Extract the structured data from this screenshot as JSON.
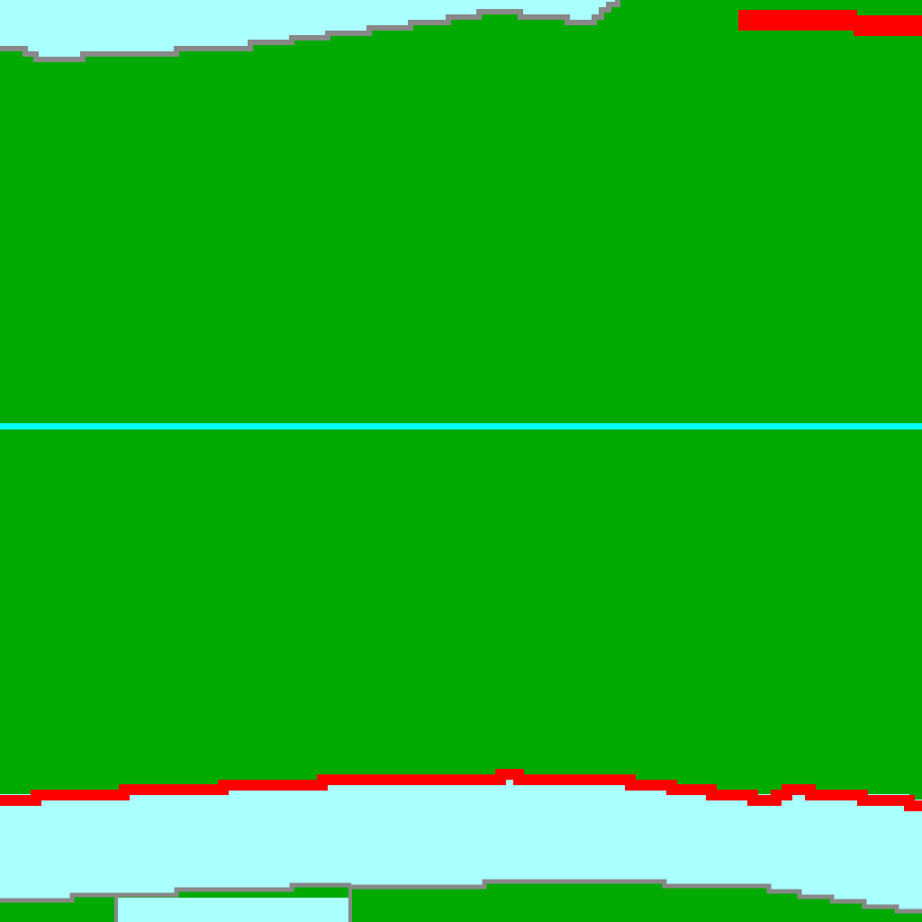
{
  "scene": {
    "type": "top-down tile map",
    "palette": {
      "water": "#aaffff",
      "grass": "#00aa00",
      "shore_edge": "#888888",
      "danger_edge": "#ff0000",
      "center_line": "#00ffff"
    },
    "regions": [
      "water-top",
      "grass-main",
      "center-line",
      "water-bottom",
      "grass-bottom-left",
      "grass-bottom-right"
    ]
  }
}
